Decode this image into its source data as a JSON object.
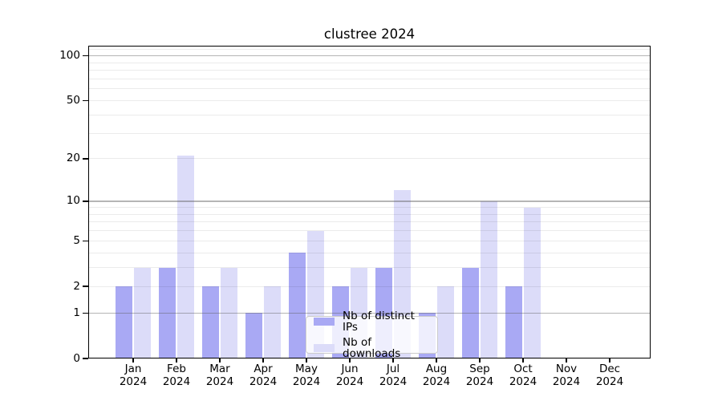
{
  "chart_data": {
    "type": "bar",
    "title": "clustree 2024",
    "year": "2024",
    "categories": [
      "Jan",
      "Feb",
      "Mar",
      "Apr",
      "May",
      "Jun",
      "Jul",
      "Aug",
      "Sep",
      "Oct",
      "Nov",
      "Dec"
    ],
    "series": [
      {
        "name": "Nb of distinct IPs",
        "color": "#a9a9f4",
        "values": [
          2,
          3,
          2,
          1,
          4,
          2,
          3,
          1,
          3,
          2,
          0,
          0
        ]
      },
      {
        "name": "Nb of downloads",
        "color": "#dcdcf9",
        "values": [
          3,
          21,
          3,
          2,
          6,
          3,
          12,
          2,
          10,
          9,
          0,
          0
        ]
      }
    ],
    "y_scale": "log1p",
    "ylim": [
      0,
      117
    ],
    "y_tick_values": [
      0,
      1,
      2,
      5,
      10,
      20,
      50,
      100
    ],
    "y_tick_labels": [
      "0",
      "1",
      "2",
      "5",
      "10",
      "20",
      "50",
      "100"
    ],
    "grid_major": [
      1,
      10,
      100
    ],
    "grid_minor": [
      2,
      3,
      4,
      5,
      6,
      7,
      8,
      9,
      20,
      30,
      40,
      50,
      60,
      70,
      80,
      90,
      110
    ],
    "grid": "on",
    "legend_position": "inside-bottom-center-left",
    "colors": {
      "distinct_ips": "#a9a9f4",
      "downloads": "#dcdcf9",
      "frame": "#000000",
      "major_grid": "#bdbdbd",
      "minor_grid": "#ebebeb"
    }
  }
}
